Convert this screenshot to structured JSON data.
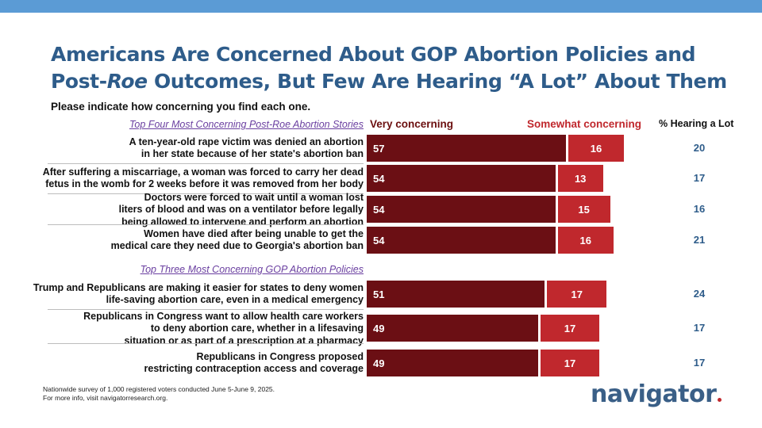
{
  "title": {
    "line1": "Americans Are Concerned About GOP Abortion Policies and",
    "line2_pre": "Post-",
    "line2_italic": "Roe",
    "line2_post": " Outcomes, But Few Are Hearing “A Lot” About Them"
  },
  "subtitle": "Please indicate how concerning you find each one.",
  "colors": {
    "very": "#6b0f14",
    "somewhat": "#c0282d",
    "title": "#2e5c8a",
    "section": "#6a3fa0"
  },
  "chart_data": {
    "type": "bar",
    "orientation": "horizontal",
    "stacked": true,
    "legend": {
      "very": "Very concerning",
      "somewhat": "Somewhat concerning",
      "hearing": "% Hearing a Lot"
    },
    "sections": [
      {
        "heading": "Top Four Most Concerning Post-Roe Abortion Stories",
        "rows": [
          {
            "lines": [
              "A ten-year-old rape victim was denied an abortion",
              "in her state because of her state's abortion ban"
            ],
            "very": 57,
            "somewhat": 16,
            "hearing": 20
          },
          {
            "lines": [
              "After suffering a miscarriage, a woman was forced to carry her dead",
              "fetus in the womb for 2 weeks before it was removed from her body"
            ],
            "very": 54,
            "somewhat": 13,
            "hearing": 17
          },
          {
            "lines": [
              "Doctors were forced to wait until a woman lost",
              "liters of blood and was on a ventilator before legally",
              "being allowed to intervene and perform an abortion"
            ],
            "very": 54,
            "somewhat": 15,
            "hearing": 16
          },
          {
            "lines": [
              "Women have died after being unable to get the",
              "medical care they need due to Georgia's abortion ban"
            ],
            "very": 54,
            "somewhat": 16,
            "hearing": 21
          }
        ]
      },
      {
        "heading": "Top Three Most Concerning GOP Abortion Policies",
        "rows": [
          {
            "lines": [
              "Trump and Republicans are making it easier for states to deny women",
              "life-saving abortion care, even in a medical emergency"
            ],
            "very": 51,
            "somewhat": 17,
            "hearing": 24
          },
          {
            "lines": [
              "Republicans in Congress want to allow health care workers",
              "to deny abortion care, whether in a lifesaving",
              "situation or as part of a prescription at a pharmacy"
            ],
            "very": 49,
            "somewhat": 17,
            "hearing": 17
          },
          {
            "lines": [
              "Republicans in Congress proposed",
              "restricting contraception access and coverage"
            ],
            "very": 49,
            "somewhat": 17,
            "hearing": 17
          }
        ]
      }
    ]
  },
  "footnote": {
    "line1": "Nationwide survey of 1,000 registered voters conducted June 5-June 9, 2025.",
    "line2": "For more info, visit navigatorresearch.org."
  },
  "logo": {
    "text": "navigator"
  }
}
